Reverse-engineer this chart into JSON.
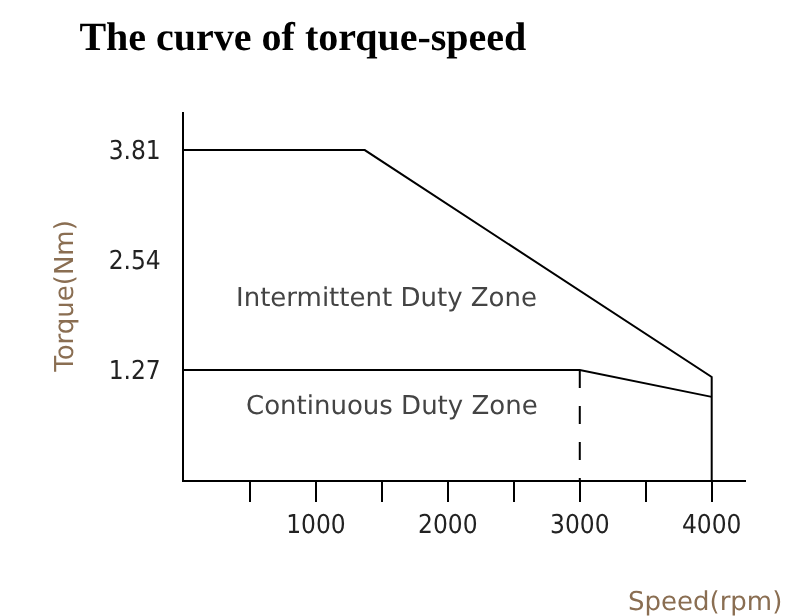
{
  "chart_data": {
    "type": "line",
    "title": "The curve of torque-speed",
    "xlabel": "Speed(rpm)",
    "ylabel": "Torque(Nm)",
    "series": [
      {
        "color": "#000000",
        "x": [
          0,
          1370,
          4000,
          4000
        ],
        "values": [
          3.81,
          3.81,
          1.19,
          0
        ]
      },
      {
        "color": "#000000",
        "x": [
          0,
          3000,
          4000
        ],
        "values": [
          1.27,
          1.27,
          0.96
        ]
      },
      {
        "color": "#000000",
        "x": [
          3000,
          3000
        ],
        "values": [
          1.27,
          0
        ],
        "line_style": "dashed"
      }
    ],
    "annotations": [
      "Intermittent Duty Zone",
      "Continuous Duty Zone"
    ],
    "xlim": [
      0,
      4260
    ],
    "xticks": [
      {
        "value": 500,
        "label": null
      },
      1000,
      {
        "value": 1500,
        "label": null
      },
      2000,
      {
        "value": 2500,
        "label": null
      },
      3000,
      {
        "value": 3500,
        "label": null
      },
      4000
    ],
    "ylim": [
      0,
      4.25
    ],
    "yticks": [
      1.27,
      2.54,
      3.81
    ],
    "grid": false,
    "marker": "none",
    "line_style": "solid"
  }
}
